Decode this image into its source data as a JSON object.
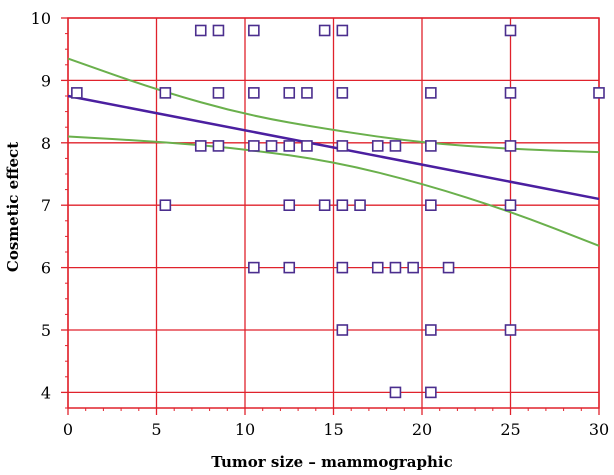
{
  "chart_data": {
    "type": "scatter",
    "xlabel": "Tumor size – mammographic",
    "ylabel": "Cosmetic effect",
    "xlim": [
      0,
      30
    ],
    "ylim": [
      3.75,
      10
    ],
    "x_ticks": [
      "0",
      "5",
      "10",
      "15",
      "20",
      "25",
      "30"
    ],
    "y_ticks": [
      "4",
      "5",
      "6",
      "7",
      "8",
      "9",
      "10"
    ],
    "grid": true,
    "colors": {
      "grid": "#e0222c",
      "points": "#4b2e8e",
      "fit_line": "#4b1fa0",
      "confidence_band": "#6ab04c"
    },
    "points": [
      [
        7.5,
        9.8
      ],
      [
        8.5,
        9.8
      ],
      [
        10.5,
        9.8
      ],
      [
        14.5,
        9.8
      ],
      [
        15.5,
        9.8
      ],
      [
        25,
        9.8
      ],
      [
        0.5,
        8.8
      ],
      [
        5.5,
        8.8
      ],
      [
        8.5,
        8.8
      ],
      [
        10.5,
        8.8
      ],
      [
        12.5,
        8.8
      ],
      [
        13.5,
        8.8
      ],
      [
        15.5,
        8.8
      ],
      [
        20.5,
        8.8
      ],
      [
        25,
        8.8
      ],
      [
        30,
        8.8
      ],
      [
        7.5,
        7.95
      ],
      [
        8.5,
        7.95
      ],
      [
        10.5,
        7.95
      ],
      [
        11.5,
        7.95
      ],
      [
        12.5,
        7.95
      ],
      [
        13.5,
        7.95
      ],
      [
        15.5,
        7.95
      ],
      [
        17.5,
        7.95
      ],
      [
        18.5,
        7.95
      ],
      [
        20.5,
        7.95
      ],
      [
        25,
        7.95
      ],
      [
        5.5,
        7
      ],
      [
        12.5,
        7
      ],
      [
        14.5,
        7
      ],
      [
        15.5,
        7
      ],
      [
        16.5,
        7
      ],
      [
        20.5,
        7
      ],
      [
        25,
        7
      ],
      [
        10.5,
        6
      ],
      [
        12.5,
        6
      ],
      [
        15.5,
        6
      ],
      [
        17.5,
        6
      ],
      [
        18.5,
        6
      ],
      [
        19.5,
        6
      ],
      [
        21.5,
        6
      ],
      [
        15.5,
        5
      ],
      [
        20.5,
        5
      ],
      [
        25,
        5
      ],
      [
        18.5,
        4
      ],
      [
        20.5,
        4
      ]
    ],
    "fit_line": [
      [
        0,
        8.75
      ],
      [
        30,
        7.1
      ]
    ],
    "upper_band": [
      [
        0,
        9.35
      ],
      [
        5,
        8.85
      ],
      [
        10,
        8.45
      ],
      [
        15,
        8.2
      ],
      [
        20,
        8.0
      ],
      [
        25,
        7.9
      ],
      [
        30,
        7.85
      ]
    ],
    "lower_band": [
      [
        0,
        8.1
      ],
      [
        5,
        8.02
      ],
      [
        10,
        7.9
      ],
      [
        15,
        7.7
      ],
      [
        20,
        7.35
      ],
      [
        25,
        6.9
      ],
      [
        30,
        6.35
      ]
    ]
  }
}
